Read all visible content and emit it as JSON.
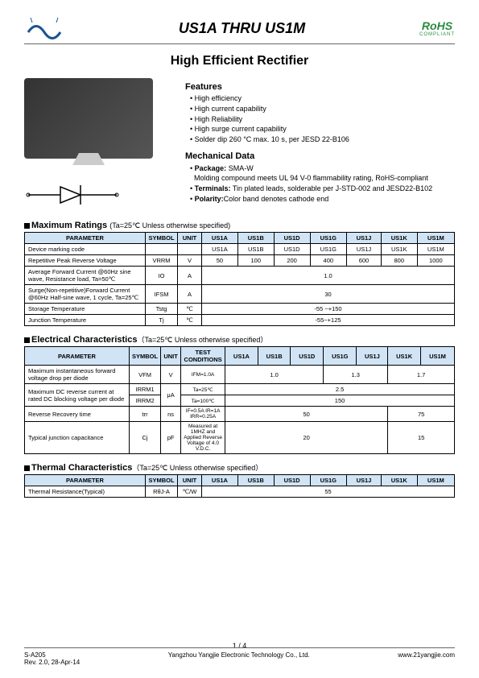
{
  "header": {
    "title": "US1A THRU US1M",
    "rohs": "RoHS",
    "rohs_sub": "COMPLIANT"
  },
  "subtitle": "High Efficient Rectifier",
  "features": {
    "heading": "Features",
    "items": [
      "High efficiency",
      "High current capability",
      "High Reliability",
      "High surge current capability",
      "Solder dip 260 °C max. 10 s, per JESD 22-B106"
    ]
  },
  "mechdata": {
    "heading": "Mechanical Data",
    "package_label": "Package:",
    "package_val": "SMA-W",
    "package_desc": "Molding compound meets UL 94 V-0 flammability rating, RoHS-compliant",
    "terminals_label": "Terminals:",
    "terminals_val": "Tin plated leads, solderable per J-STD-002 and JESD22-B102",
    "polarity_label": "Polarity:",
    "polarity_val": "Color band denotes cathode end"
  },
  "parts": [
    "US1A",
    "US1B",
    "US1D",
    "US1G",
    "US1J",
    "US1K",
    "US1M"
  ],
  "max_ratings": {
    "title": "Maximum Ratings",
    "cond": "(Ta=25℃ Unless otherwise specified)",
    "headers": [
      "PARAMETER",
      "SYMBOL",
      "UNIT"
    ],
    "rows": [
      {
        "param": "Device marking code",
        "symbol": "",
        "unit": "",
        "vals": [
          "US1A",
          "US1B",
          "US1D",
          "US1G",
          "US1J",
          "US1K",
          "US1M"
        ]
      },
      {
        "param": "Repetitive Peak Reverse Voltage",
        "symbol": "VRRM",
        "unit": "V",
        "vals": [
          "50",
          "100",
          "200",
          "400",
          "600",
          "800",
          "1000"
        ]
      },
      {
        "param": "Average Forward Current @60Hz sine wave, Resistance load, Ta=50℃",
        "symbol": "IO",
        "unit": "A",
        "merged": "1.0"
      },
      {
        "param": "Surge(Non-repetitive)Forward Current @60Hz Half-sine wave, 1 cycle, Ta=25℃",
        "symbol": "IFSM",
        "unit": "A",
        "merged": "30"
      },
      {
        "param": "Storage Temperature",
        "symbol": "Tstg",
        "unit": "℃",
        "merged": "-55 ~+150"
      },
      {
        "param": "Junction Temperature",
        "symbol": "Tj",
        "unit": "℃",
        "merged": "-55~+125"
      }
    ]
  },
  "elec": {
    "title": "Electrical Characteristics",
    "cond": "（Ta=25℃ Unless otherwise specified）",
    "test_cond_header": "TEST CONDITIONS",
    "rows": [
      {
        "param": "Maximum instantaneous forward voltage drop per diode",
        "symbol": "VFM",
        "unit": "V",
        "cond": "IFM=1.0A",
        "spans": [
          {
            "c": 3,
            "v": "1.0"
          },
          {
            "c": 2,
            "v": "1.3"
          },
          {
            "c": 2,
            "v": "1.7"
          }
        ]
      },
      {
        "param": "Maximum DC reverse current at rated DC blocking voltage per diode",
        "symbol": "IRRM1",
        "unit": "μA",
        "cond": "Ta=25℃",
        "merged": "2.5",
        "rowspan": 2
      },
      {
        "symbol": "IRRM2",
        "cond": "Ta=100℃",
        "merged": "150"
      },
      {
        "param": "Reverse Recovery time",
        "symbol": "trr",
        "unit": "ns",
        "cond": "IF=0.5A IR=1A IRR=0.25A",
        "spans": [
          {
            "c": 5,
            "v": "50"
          },
          {
            "c": 2,
            "v": "75"
          }
        ]
      },
      {
        "param": "Typical junction capacitance",
        "symbol": "Cj",
        "unit": "pF",
        "cond": "Measured at 1MHZ and Applied Reverse Voltage of 4.0 V.D.C.",
        "spans": [
          {
            "c": 5,
            "v": "20"
          },
          {
            "c": 2,
            "v": "15"
          }
        ]
      }
    ]
  },
  "thermal": {
    "title": "Thermal Characteristics",
    "cond": "（Ta=25℃ Unless otherwise specified）",
    "row": {
      "param": "Thermal Resistance(Typical)",
      "symbol": "RθJ-A",
      "unit": "℃/W",
      "merged": "55"
    }
  },
  "footer": {
    "page": "1 / 4",
    "left1": "S-A205",
    "left2": "Rev. 2.0, 28-Apr-14",
    "center": "Yangzhou Yangjie Electronic Technology Co., Ltd.",
    "right": "www.21yangjie.com"
  }
}
